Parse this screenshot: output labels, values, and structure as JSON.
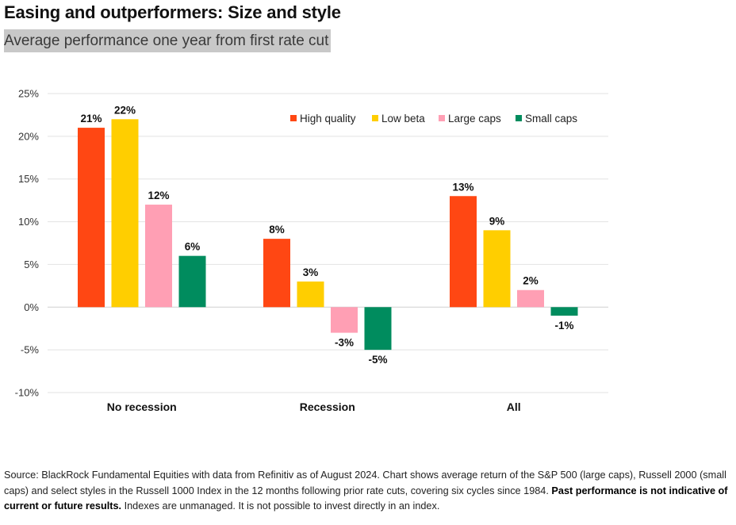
{
  "title": "Easing and outperformers: Size and style",
  "subtitle": "Average performance one year from first rate cut",
  "chart_data": {
    "type": "bar",
    "categories": [
      "No recession",
      "Recession",
      "All"
    ],
    "series": [
      {
        "name": "High quality",
        "color": "#ff4713",
        "values": [
          21,
          8,
          13
        ]
      },
      {
        "name": "Low beta",
        "color": "#ffce00",
        "values": [
          22,
          3,
          9
        ]
      },
      {
        "name": "Large caps",
        "color": "#ff9fb4",
        "values": [
          12,
          -3,
          2
        ]
      },
      {
        "name": "Small caps",
        "color": "#008c5e",
        "values": [
          6,
          -5,
          -1
        ]
      }
    ],
    "ylim": [
      -10,
      25
    ],
    "yticks": [
      25,
      20,
      15,
      10,
      5,
      0,
      -5,
      -10
    ],
    "ytick_labels": [
      "25%",
      "20%",
      "15%",
      "10%",
      "5%",
      "0%",
      "-5%",
      "-10%"
    ],
    "data_labels": [
      [
        "21%",
        "8%",
        "13%"
      ],
      [
        "22%",
        "3%",
        "9%"
      ],
      [
        "12%",
        "-3%",
        "2%"
      ],
      [
        "6%",
        "-5%",
        "-1%"
      ]
    ],
    "grid": true,
    "legend": "top-right"
  },
  "footer": {
    "text": "Source: BlackRock Fundamental Equities with data from Refinitiv as of August 2024. Chart shows average return of the S&P 500 (large caps), Russell 2000 (small caps) and select styles in the Russell 1000 Index in the 12 months following prior rate cuts, covering six cycles since 1984. ",
    "bold": "Past performance is not indicative of current or future results.",
    "tail": " Indexes are unmanaged. It is not possible to invest directly in an index."
  }
}
